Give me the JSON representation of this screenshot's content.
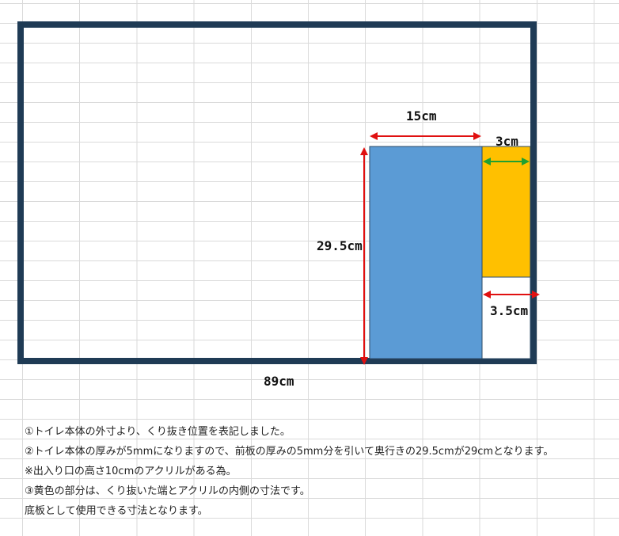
{
  "diagram": {
    "labels": {
      "top_width": "15cm",
      "yellow_width": "3cm",
      "depth": "29.5cm",
      "gap_width": "3.5cm",
      "total_width": "89cm"
    },
    "colors": {
      "frame": "#1f3b55",
      "blue_panel": "#5b9bd5",
      "yellow_panel": "#ffc000",
      "red_arrow": "#e01010",
      "green_arrow": "#20a030"
    }
  },
  "notes": [
    "①トイレ本体の外寸より、くり抜き位置を表記しました。",
    "②トイレ本体の厚みが5mmになりますので、前板の厚みの5mm分を引いて奥行きの29.5cmが29cmとなります。",
    "※出入り口の高さ10cmのアクリルがある為。",
    "③黄色の部分は、くり抜いた端とアクリルの内側の寸法です。",
    "底板として使用できる寸法となります。"
  ]
}
